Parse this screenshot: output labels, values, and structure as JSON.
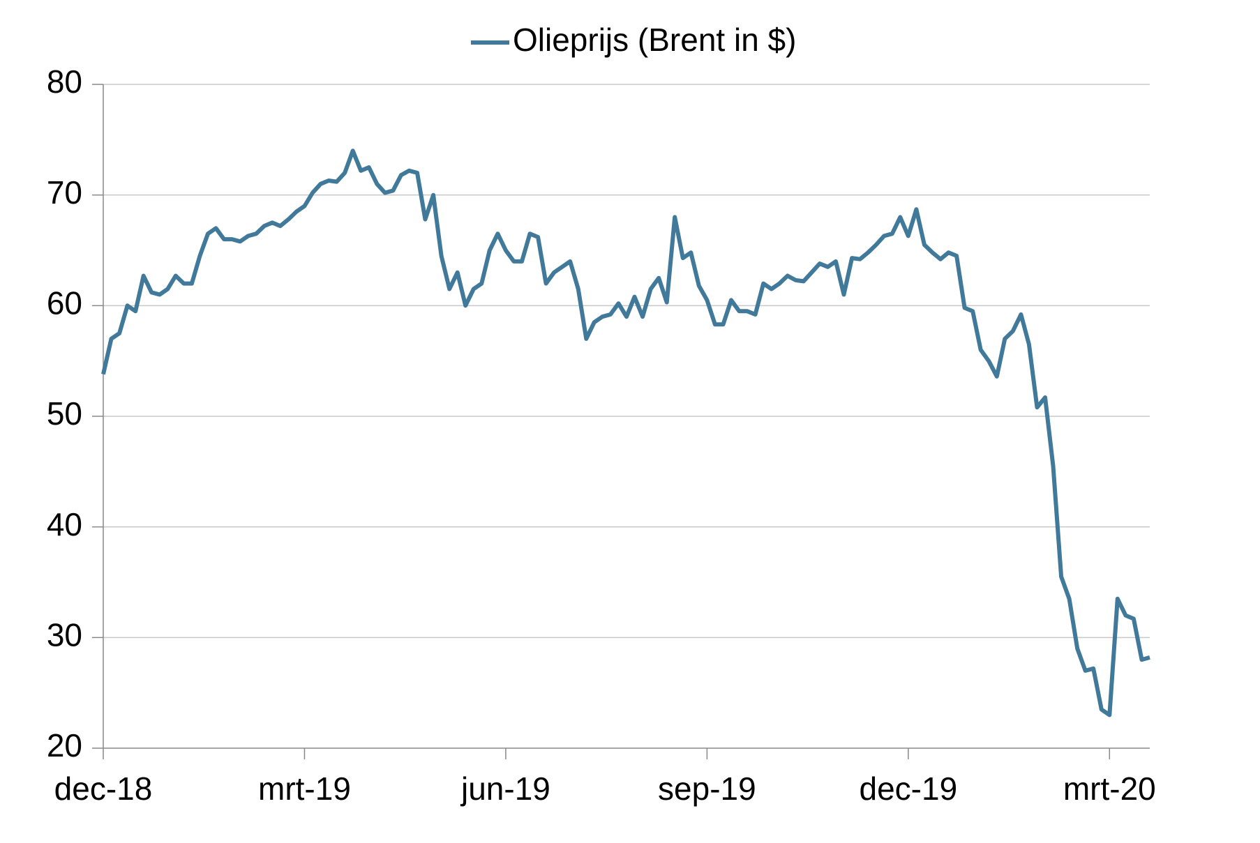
{
  "chart_data": {
    "type": "line",
    "categories": [
      "dec-18",
      null,
      null,
      null,
      null,
      null,
      null,
      null,
      null,
      null,
      null,
      null,
      null,
      null,
      null,
      null,
      null,
      null,
      null,
      null,
      null,
      null,
      null,
      null,
      null,
      "mrt-19",
      null,
      null,
      null,
      null,
      null,
      null,
      null,
      null,
      null,
      null,
      null,
      null,
      null,
      null,
      null,
      null,
      null,
      null,
      null,
      null,
      null,
      null,
      null,
      null,
      "jun-19",
      null,
      null,
      null,
      null,
      null,
      null,
      null,
      null,
      null,
      null,
      null,
      null,
      null,
      null,
      null,
      null,
      null,
      null,
      null,
      null,
      null,
      null,
      null,
      null,
      "sep-19",
      null,
      null,
      null,
      null,
      null,
      null,
      null,
      null,
      null,
      null,
      null,
      null,
      null,
      null,
      null,
      null,
      null,
      null,
      null,
      null,
      null,
      null,
      null,
      null,
      "dec-19",
      null,
      null,
      null,
      null,
      null,
      null,
      null,
      null,
      null,
      null,
      null,
      null,
      null,
      null,
      null,
      null,
      null,
      null,
      null,
      null,
      null,
      null,
      null,
      null,
      "mrt-20",
      null,
      null,
      null,
      null,
      null
    ],
    "series": [
      {
        "name": "Olieprijs (Brent in $)",
        "color": "#41799a",
        "values": [
          53.8,
          57,
          57.5,
          60,
          59.5,
          62.7,
          61.2,
          61,
          61.5,
          62.7,
          62,
          62,
          64.5,
          66.5,
          67,
          66,
          66,
          65.8,
          66.3,
          66.5,
          67.2,
          67.5,
          67.2,
          67.8,
          68.5,
          69,
          70.2,
          71,
          71.3,
          71.2,
          72,
          74,
          72.2,
          72.5,
          71,
          70.2,
          70.4,
          71.8,
          72.2,
          72,
          67.8,
          70,
          64.5,
          61.5,
          63,
          60,
          61.5,
          62,
          65,
          66.5,
          65,
          64,
          64,
          66.5,
          66.2,
          62,
          63,
          63.5,
          64,
          61.5,
          57,
          58.5,
          59,
          59.2,
          60.2,
          59,
          60.8,
          59,
          61.5,
          62.5,
          60.3,
          68,
          64.3,
          64.8,
          61.8,
          60.5,
          58.3,
          58.3,
          60.5,
          59.5,
          59.5,
          59.2,
          62,
          61.5,
          62,
          62.7,
          62.3,
          62.2,
          63,
          63.8,
          63.5,
          64,
          61,
          64.3,
          64.2,
          64.8,
          65.5,
          66.3,
          66.5,
          68,
          66.3,
          68.7,
          65.5,
          64.8,
          64.2,
          64.8,
          64.5,
          59.8,
          59.5,
          56,
          55,
          53.6,
          57,
          57.7,
          59.2,
          56.5,
          50.8,
          51.7,
          45.5,
          35.5,
          33.5,
          29,
          27,
          27.2,
          23.5,
          23,
          33.5,
          32,
          31.7,
          28,
          28.2
        ]
      }
    ],
    "ylim": [
      20,
      80
    ],
    "yticks": [
      20,
      30,
      40,
      50,
      60,
      70,
      80
    ],
    "grid": true
  }
}
